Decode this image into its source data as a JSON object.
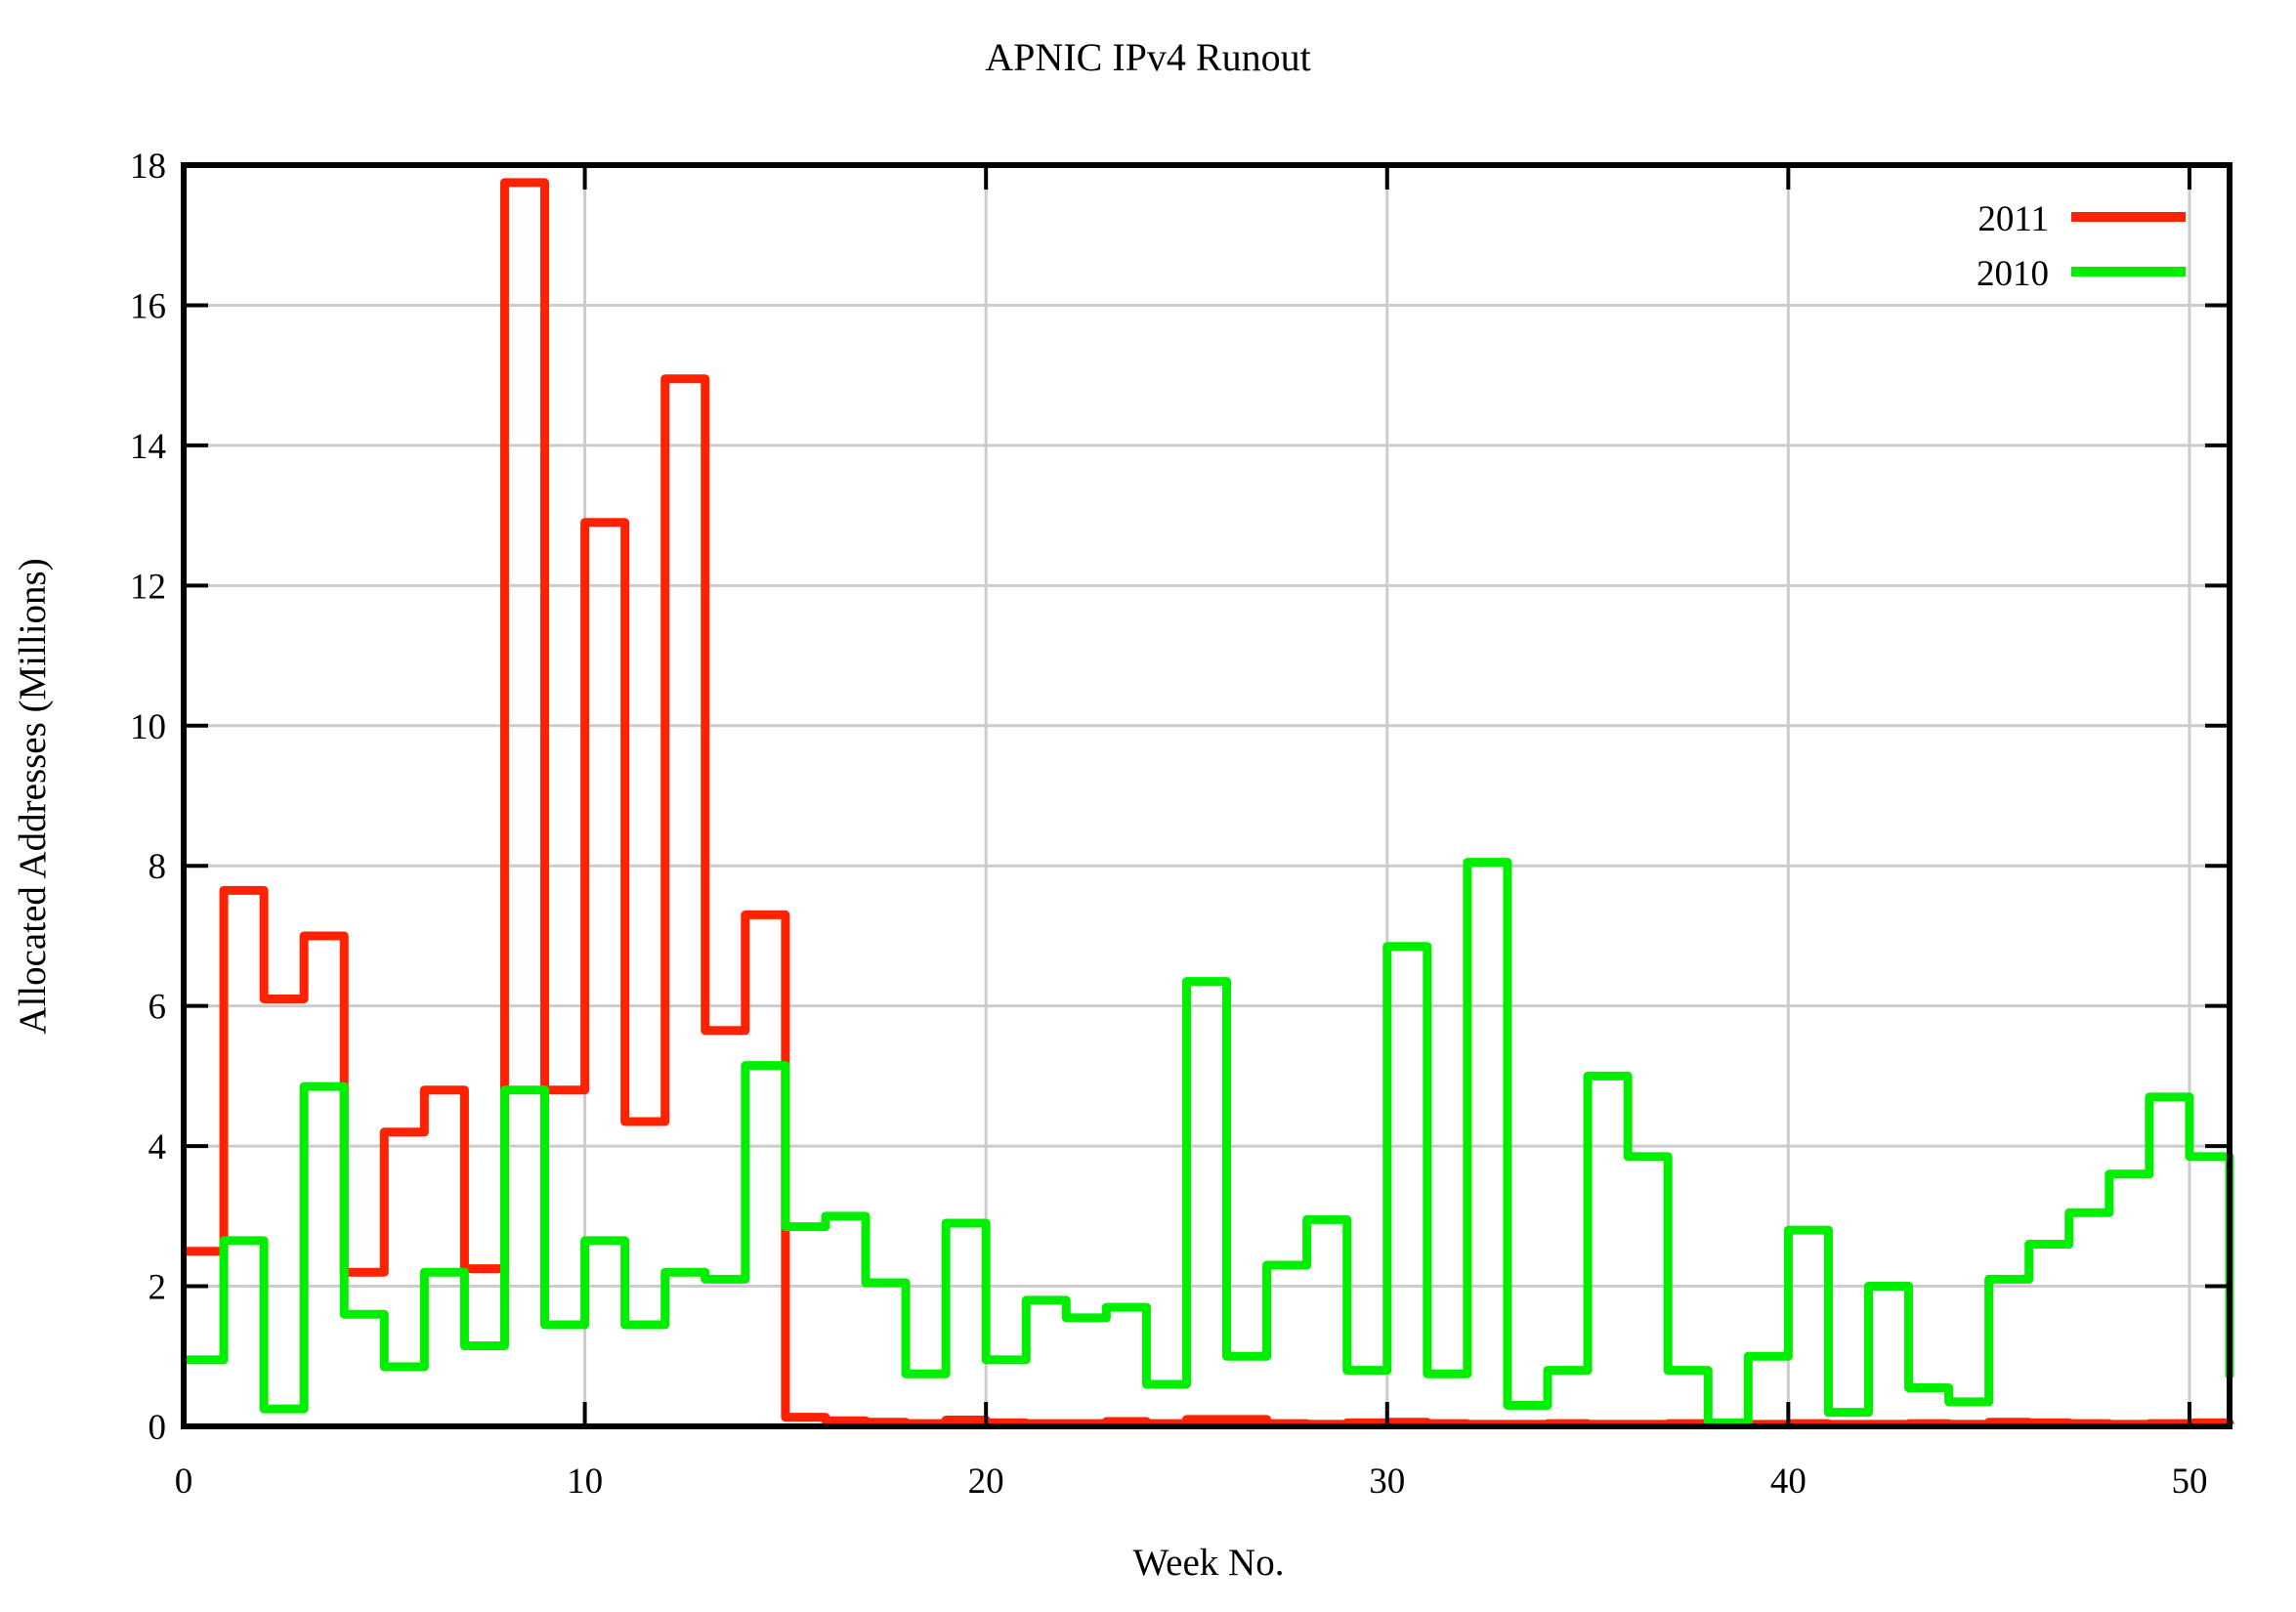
{
  "chart_data": {
    "type": "line",
    "subtype": "step-left",
    "title": "APNIC IPv4 Runout",
    "xlabel": "Week No.",
    "ylabel": "Allocated Addresses (Millions)",
    "xlim": [
      0,
      51
    ],
    "ylim": [
      0,
      18
    ],
    "x_ticks": [
      0,
      10,
      20,
      30,
      40,
      50
    ],
    "y_ticks": [
      0,
      2,
      4,
      6,
      8,
      10,
      12,
      14,
      16,
      18
    ],
    "grid": true,
    "grid_color": "#cccccc",
    "border_color": "#000000",
    "legend_position": "top-right-inside",
    "weeks": [
      0,
      1,
      2,
      3,
      4,
      5,
      6,
      7,
      8,
      9,
      10,
      11,
      12,
      13,
      14,
      15,
      16,
      17,
      18,
      19,
      20,
      21,
      22,
      23,
      24,
      25,
      26,
      27,
      28,
      29,
      30,
      31,
      32,
      33,
      34,
      35,
      36,
      37,
      38,
      39,
      40,
      41,
      42,
      43,
      44,
      45,
      46,
      47,
      48,
      49,
      50,
      51
    ],
    "series": [
      {
        "name": "2011",
        "color": "#ff2200",
        "values": [
          2.5,
          7.65,
          6.1,
          7.0,
          2.2,
          4.2,
          4.8,
          2.25,
          17.75,
          4.8,
          12.9,
          4.35,
          14.95,
          5.65,
          7.3,
          0.13,
          0.08,
          0.06,
          0.04,
          0.09,
          0.05,
          0.04,
          0.04,
          0.07,
          0.04,
          0.1,
          0.1,
          0.04,
          0.03,
          0.05,
          0.06,
          0.04,
          0.03,
          0.03,
          0.04,
          0.03,
          0.03,
          0.04,
          0.03,
          0.03,
          0.04,
          0.03,
          0.03,
          0.04,
          0.03,
          0.06,
          0.05,
          0.04,
          0.03,
          0.04,
          0.05,
          0.03
        ]
      },
      {
        "name": "2010",
        "color": "#00ee00",
        "values": [
          0.95,
          2.65,
          0.25,
          4.85,
          1.6,
          0.85,
          2.2,
          1.15,
          4.8,
          1.45,
          2.65,
          1.45,
          2.2,
          2.1,
          5.15,
          2.85,
          3.0,
          2.05,
          0.75,
          2.9,
          0.95,
          1.8,
          1.55,
          1.7,
          0.6,
          6.35,
          1.0,
          2.3,
          2.95,
          0.8,
          6.85,
          0.75,
          8.05,
          0.3,
          0.8,
          5.0,
          3.85,
          0.8,
          0.05,
          1.0,
          2.8,
          0.2,
          2.0,
          0.55,
          0.35,
          2.1,
          2.6,
          3.05,
          3.6,
          4.7,
          3.85,
          0.7
        ]
      }
    ]
  }
}
